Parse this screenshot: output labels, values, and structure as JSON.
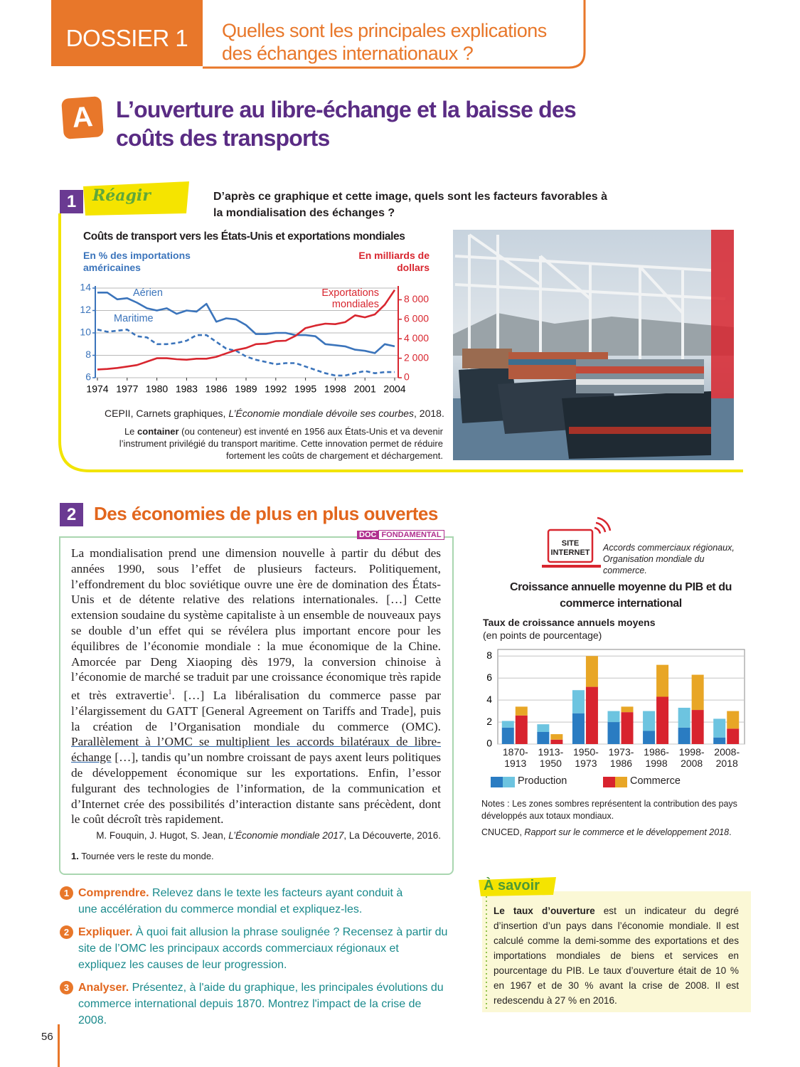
{
  "header": {
    "dossier": "DOSSIER 1",
    "question": "Quelles sont les principales explications des échanges internationaux ?"
  },
  "section": {
    "letter": "A",
    "title": "L’ouverture au libre-échange et la baisse des coûts des transports"
  },
  "doc1": {
    "number": "1",
    "tag": "Réagir",
    "question": "D’après ce graphique et cette image, quels sont les facteurs favorables à la mondialisation des échanges ?",
    "source_parts": [
      "CEPII, Carnets graphiques, ",
      "L’Économie mondiale dévoile ses courbes",
      ", 2018."
    ],
    "caption_parts": [
      "Le ",
      "container",
      " (ou conteneur) est inventé en 1956 aux États-Unis et va devenir l’instrument privilégié du transport maritime. Cette innovation permet de réduire fortement les coûts de chargement et déchargement."
    ]
  },
  "doc2": {
    "number": "2",
    "title": "Des économies de plus en plus ouvertes",
    "badge": [
      "DOC",
      "FONDAMENTAL"
    ],
    "text_parts": [
      "La mondialisation prend une dimension nouvelle à partir du début des années 1990, sous l’effet de plusieurs facteurs. Politiquement, l’effondrement du bloc soviétique ouvre une ère de domination des États-Unis et de détente relative des relations internationales. […] Cette extension soudaine du système capitaliste à un ensemble de nouveaux pays se double d’un effet qui se révélera plus important encore pour les équilibres de l’économie mondiale : la mue économique de la Chine. Amorcée par Deng Xiaoping dès 1979, la conversion chinoise à l’économie de marché se traduit par une croissance économique très rapide et très extravertie",
      "1",
      ". […] La libéralisation du commerce passe par l’élargissement du GATT [General Agreement on Tariffs and Trade], puis la création de l’Organisation mondiale du commerce (OMC).",
      "Parallèlement à l’OMC se multiplient les accords bilatéraux de libre-échange",
      "[…], tandis qu’un nombre croissant de pays axent leurs politiques de développement économique sur les exportations. Enfin, l’essor fulgurant des technologies de l’information, de la communication et d’Internet crée des possibilités d’interaction distante sans précèdent, dont le coût décroît très rapidement."
    ],
    "source_parts": [
      "M. Fouquin, J. Hugot, S. Jean, ",
      "L’Économie mondiale 2017",
      ", La Découverte, 2016."
    ],
    "footnote_parts": [
      "1.",
      "Tournée vers le reste du monde."
    ]
  },
  "site": {
    "label": "SITE INTERNET",
    "text": "Accords commerciaux régionaux, Organisation mondiale du commerce."
  },
  "questions": [
    {
      "number": "1",
      "label": "Comprendre.",
      "text": "Relevez dans le texte les facteurs ayant conduit à une accélération du commerce mondial et expliquez-les."
    },
    {
      "number": "2",
      "label": "Expliquer.",
      "text": "À quoi fait allusion la phrase soulignée ? Recensez à partir du site de l’OMC les principaux accords commerciaux régionaux et expliquez les causes de leur progression."
    },
    {
      "number": "3",
      "label": "Analyser.",
      "text": "Présentez, à l'aide du graphique, les principales évolutions du commerce international depuis 1870. Montrez l'impact de la crise de 2008."
    }
  ],
  "a_savoir": {
    "title": "À savoir",
    "text_parts": [
      "Le taux d’ouverture",
      " est un indicateur du degré d’insertion d’un pays dans l’économie mondiale. Il est calculé comme la demi-somme des exportations et des importations mondiales de biens et services en pourcentage du PIB. Le taux d’ouverture était de 10 % en 1967 et de 30 % avant la crise de 2008. Il est redescendu à 27 % en 2016."
    ]
  },
  "page_number": "56",
  "chart_data": [
    {
      "type": "line",
      "title": "Coûts de transport vers les États-Unis et exportations mondiales",
      "y_label": "En % des importations américaines",
      "y2_label": "En milliards de dollars",
      "x": [
        1974,
        1975,
        1976,
        1977,
        1978,
        1979,
        1980,
        1981,
        1982,
        1983,
        1984,
        1985,
        1986,
        1987,
        1988,
        1989,
        1990,
        1991,
        1992,
        1993,
        1994,
        1995,
        1996,
        1997,
        1998,
        1999,
        2000,
        2001,
        2002,
        2003,
        2004
      ],
      "xlim": [
        1974,
        2004
      ],
      "xticks": [
        1974,
        1977,
        1980,
        1983,
        1986,
        1989,
        1992,
        1995,
        1998,
        2001,
        2004
      ],
      "ylim": [
        6,
        14
      ],
      "yticks": [
        6,
        8,
        10,
        12,
        14
      ],
      "y2lim": [
        0,
        9200
      ],
      "y2ticks": [
        0,
        {
          "value": 2000,
          "label": "2 000"
        },
        {
          "value": 4000,
          "label": "4 000"
        },
        {
          "value": 6000,
          "label": "6 000"
        },
        {
          "value": 8000,
          "label": "8 000"
        }
      ],
      "grid": true,
      "series": [
        {
          "name": "Aérien",
          "color": "#3b74bb",
          "style": "solid",
          "values": [
            13.6,
            13.6,
            13.0,
            13.1,
            12.7,
            12.2,
            12.0,
            12.2,
            11.7,
            12.0,
            11.9,
            12.6,
            11.0,
            11.3,
            11.2,
            10.7,
            9.9,
            9.9,
            10.0,
            10.0,
            9.8,
            9.8,
            9.7,
            9.0,
            8.9,
            8.8,
            8.5,
            8.4,
            8.2,
            9.0,
            8.8
          ]
        },
        {
          "name": "Maritime",
          "color": "#3b74bb",
          "style": "dashed",
          "values": [
            10.3,
            10.1,
            10.2,
            10.3,
            9.7,
            9.6,
            9.0,
            9.0,
            9.1,
            9.3,
            9.8,
            9.8,
            9.2,
            8.6,
            8.4,
            7.9,
            7.6,
            7.4,
            7.2,
            7.3,
            7.3,
            7.0,
            6.7,
            6.4,
            6.2,
            6.2,
            6.4,
            6.6,
            6.4,
            6.5,
            6.5
          ]
        },
        {
          "name": "Exportations mondiales",
          "color": "#d8262f",
          "style": "solid",
          "axis": "y2",
          "values": [
            850,
            900,
            1000,
            1150,
            1300,
            1650,
            2000,
            2000,
            1900,
            1850,
            1950,
            1950,
            2150,
            2500,
            2850,
            3050,
            3450,
            3500,
            3750,
            3800,
            4300,
            5100,
            5350,
            5550,
            5500,
            5700,
            6400,
            6200,
            6500,
            7500,
            9000
          ]
        }
      ]
    },
    {
      "type": "stacked-bar",
      "title": "Croissance annuelle moyenne du PIB et du commerce international",
      "y_label": "Taux de croissance annuels moyens",
      "y_sublabel": "(en points de pourcentage)",
      "categories": [
        "1870-1913",
        "1913-1950",
        "1950-1973",
        "1973-1986",
        "1986-1998",
        "1998-2008",
        "2008-2018"
      ],
      "ylim": [
        0,
        8.6
      ],
      "yticks": [
        0,
        2,
        4,
        6,
        8
      ],
      "grid": true,
      "series": [
        {
          "name": "Production",
          "colors": [
            "#2a7cc2",
            "#6dc4e0"
          ],
          "stacks": [
            [
              1.5,
              1.1,
              2.8,
              2.0,
              1.2,
              1.5,
              0.6
            ],
            [
              0.6,
              0.7,
              2.1,
              1.0,
              1.8,
              1.8,
              1.7
            ]
          ]
        },
        {
          "name": "Commerce",
          "colors": [
            "#d8232e",
            "#e8a626"
          ],
          "stacks": [
            [
              2.6,
              0.4,
              5.2,
              2.9,
              4.3,
              3.1,
              1.4
            ],
            [
              0.8,
              0.5,
              2.8,
              0.5,
              2.9,
              3.2,
              1.6
            ]
          ]
        }
      ],
      "notes": "Notes : Les zones sombres représentent la contribution des pays développés aux totaux mondiaux.",
      "source_parts": [
        "CNUCED, ",
        "Rapport sur le commerce et le développement 2018",
        "."
      ]
    }
  ]
}
